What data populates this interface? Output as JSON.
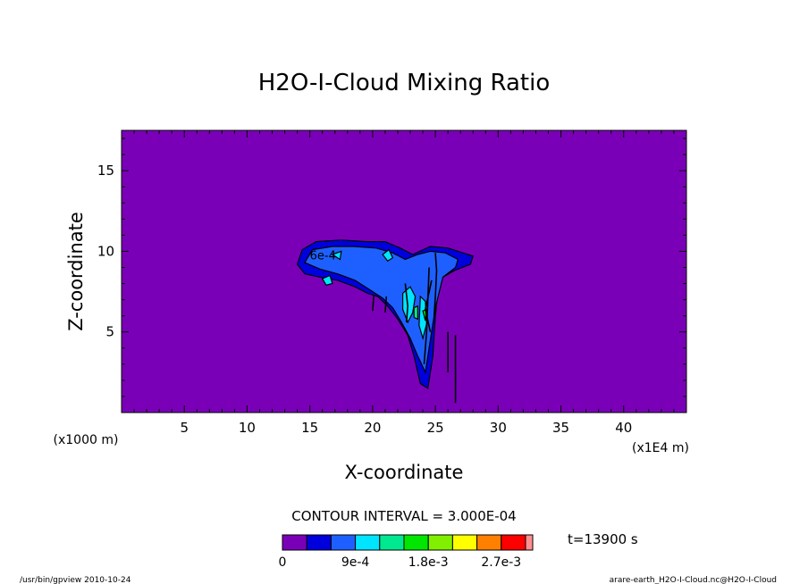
{
  "chart_data": {
    "type": "heatmap",
    "title": "H2O-I-Cloud Mixing Ratio",
    "xlabel": "X-coordinate",
    "ylabel": "Z-coordinate",
    "x_unit": "(x1E4 m)",
    "y_unit": "(x1000 m)",
    "xlim": [
      0,
      45
    ],
    "ylim": [
      0,
      17.5
    ],
    "x_ticks": [
      5,
      10,
      15,
      20,
      25,
      30,
      35,
      40
    ],
    "x_tick_labels": [
      "5",
      "10",
      "15",
      "20",
      "25",
      "30",
      "35",
      "40"
    ],
    "y_ticks": [
      5,
      10,
      15
    ],
    "y_tick_labels": [
      "5",
      "10",
      "15"
    ],
    "contour_interval_text": "CONTOUR INTERVAL = 3.000E-04",
    "contour_label": "6e-4",
    "time_text": "t=13900 s",
    "levels": [
      0,
      0.0003,
      0.0006,
      0.0009,
      0.0012,
      0.0015,
      0.0018,
      0.0021,
      0.0024,
      0.0027,
      0.003
    ],
    "colorbar": {
      "colors": [
        "#7a00b8",
        "#0000dd",
        "#1e60ff",
        "#00e5ff",
        "#00e890",
        "#00e600",
        "#80f000",
        "#ffff00",
        "#ff8000",
        "#ff0000",
        "#ff9090"
      ],
      "tick_labels": [
        "0",
        "9e-4",
        "1.8e-3",
        "2.7e-3"
      ],
      "tick_values": [
        0,
        0.0009,
        0.0018,
        0.0027
      ]
    },
    "regions": [
      {
        "name": "anvil-outer",
        "level": 0.0003,
        "color": "#0000dd",
        "points": [
          [
            14.0,
            9.2
          ],
          [
            14.4,
            10.1
          ],
          [
            15.5,
            10.6
          ],
          [
            17.5,
            10.7
          ],
          [
            19.5,
            10.6
          ],
          [
            21.0,
            10.6
          ],
          [
            22.2,
            10.2
          ],
          [
            23.2,
            9.8
          ],
          [
            24.6,
            10.3
          ],
          [
            26.0,
            10.2
          ],
          [
            27.2,
            9.9
          ],
          [
            28.0,
            9.7
          ],
          [
            27.8,
            9.2
          ],
          [
            26.5,
            8.8
          ],
          [
            25.6,
            8.4
          ],
          [
            25.2,
            7.5
          ],
          [
            25.0,
            6.0
          ],
          [
            24.8,
            3.5
          ],
          [
            24.4,
            1.5
          ],
          [
            23.8,
            1.8
          ],
          [
            23.3,
            3.5
          ],
          [
            22.8,
            4.8
          ],
          [
            22.0,
            5.8
          ],
          [
            21.2,
            6.6
          ],
          [
            20.4,
            7.2
          ],
          [
            19.6,
            7.4
          ],
          [
            18.6,
            7.8
          ],
          [
            17.2,
            8.2
          ],
          [
            15.8,
            8.4
          ],
          [
            14.6,
            8.6
          ]
        ]
      },
      {
        "name": "anvil-inner",
        "level": 0.0006,
        "color": "#1e60ff",
        "points": [
          [
            14.6,
            9.3
          ],
          [
            15.2,
            10.1
          ],
          [
            16.8,
            10.3
          ],
          [
            18.5,
            10.3
          ],
          [
            20.3,
            10.2
          ],
          [
            21.6,
            9.9
          ],
          [
            22.6,
            9.5
          ],
          [
            23.6,
            9.8
          ],
          [
            24.6,
            10.0
          ],
          [
            25.8,
            9.9
          ],
          [
            26.8,
            9.5
          ],
          [
            26.6,
            9.0
          ],
          [
            25.6,
            8.4
          ],
          [
            25.0,
            6.5
          ],
          [
            24.6,
            4.5
          ],
          [
            24.2,
            2.5
          ],
          [
            23.6,
            3.5
          ],
          [
            23.0,
            4.6
          ],
          [
            22.3,
            5.6
          ],
          [
            21.6,
            6.5
          ],
          [
            20.8,
            7.1
          ],
          [
            19.8,
            7.6
          ],
          [
            18.6,
            8.2
          ],
          [
            17.2,
            8.6
          ],
          [
            15.8,
            8.9
          ]
        ]
      },
      {
        "name": "core-1",
        "level": 0.0009,
        "color": "#00e5ff",
        "points": [
          [
            22.4,
            7.4
          ],
          [
            23.0,
            7.8
          ],
          [
            23.4,
            7.2
          ],
          [
            23.2,
            6.2
          ],
          [
            22.8,
            5.6
          ],
          [
            22.4,
            6.4
          ]
        ]
      },
      {
        "name": "core-2",
        "level": 0.0009,
        "color": "#00e5ff",
        "points": [
          [
            23.8,
            7.2
          ],
          [
            24.2,
            6.9
          ],
          [
            24.3,
            5.5
          ],
          [
            24.0,
            4.6
          ],
          [
            23.7,
            5.4
          ]
        ]
      },
      {
        "name": "core-3",
        "level": 0.0009,
        "color": "#00e5ff",
        "points": [
          [
            20.8,
            9.8
          ],
          [
            21.3,
            10.1
          ],
          [
            21.6,
            9.6
          ],
          [
            21.2,
            9.4
          ]
        ]
      },
      {
        "name": "core-4",
        "level": 0.0009,
        "color": "#00e5ff",
        "points": [
          [
            16.0,
            8.3
          ],
          [
            16.6,
            8.5
          ],
          [
            16.8,
            8.0
          ],
          [
            16.3,
            7.9
          ]
        ]
      },
      {
        "name": "core-5",
        "level": 0.0009,
        "color": "#00e5ff",
        "points": [
          [
            16.8,
            9.8
          ],
          [
            17.5,
            10.0
          ],
          [
            17.4,
            9.5
          ]
        ]
      },
      {
        "name": "core-6",
        "level": 0.0012,
        "color": "#00e890",
        "points": [
          [
            23.3,
            6.5
          ],
          [
            23.6,
            6.6
          ],
          [
            23.6,
            5.8
          ],
          [
            23.3,
            5.9
          ]
        ]
      },
      {
        "name": "core-7",
        "level": 0.0015,
        "color": "#00e600",
        "points": [
          [
            24.0,
            6.3
          ],
          [
            24.3,
            6.4
          ],
          [
            24.2,
            5.7
          ]
        ]
      }
    ],
    "contour_lines": [
      [
        [
          25.0,
          9.9
        ],
        [
          25.1,
          8.8
        ],
        [
          25.0,
          7.2
        ],
        [
          24.9,
          6.0
        ]
      ],
      [
        [
          24.5,
          9.0
        ],
        [
          24.4,
          7.0
        ],
        [
          24.3,
          5.0
        ],
        [
          24.1,
          3.0
        ]
      ],
      [
        [
          22.6,
          8.0
        ],
        [
          22.8,
          6.6
        ],
        [
          22.7,
          5.6
        ]
      ],
      [
        [
          21.1,
          7.2
        ],
        [
          21.0,
          6.2
        ]
      ],
      [
        [
          20.1,
          7.3
        ],
        [
          20.0,
          6.3
        ]
      ],
      [
        [
          26.0,
          5.0
        ],
        [
          26.0,
          2.5
        ]
      ],
      [
        [
          26.6,
          4.8
        ],
        [
          26.6,
          0.6
        ]
      ],
      [
        [
          24.7,
          8.2
        ],
        [
          24.2,
          6.4
        ],
        [
          24.6,
          5.0
        ]
      ]
    ]
  },
  "footer": {
    "left": "/usr/bin/gpview   2010-10-24",
    "right": "arare-earth_H2O-I-Cloud.nc@H2O-I-Cloud"
  }
}
